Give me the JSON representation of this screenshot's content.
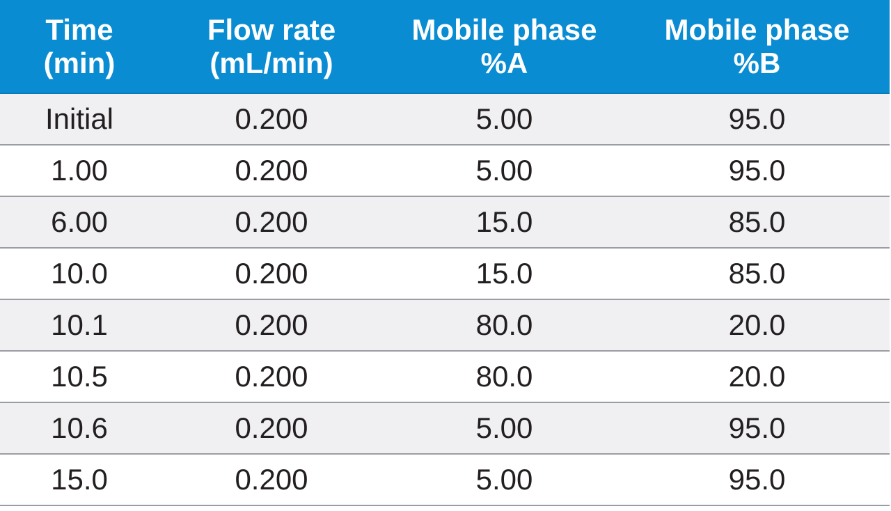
{
  "colors": {
    "header_bg": "#0a8cd2",
    "header_text": "#ffffff",
    "row_shaded": "#f0f0f3",
    "row_plain": "#ffffff",
    "divider": "#9a9da3",
    "body_text": "#231f20"
  },
  "table": {
    "headers": [
      {
        "line1": "Time",
        "line2": "(min)"
      },
      {
        "line1": "Flow rate",
        "line2": "(mL/min)"
      },
      {
        "line1": "Mobile phase",
        "line2": "%A"
      },
      {
        "line1": "Mobile phase",
        "line2": "%B"
      }
    ],
    "rows": [
      [
        "Initial",
        "0.200",
        "5.00",
        "95.0"
      ],
      [
        "1.00",
        "0.200",
        "5.00",
        "95.0"
      ],
      [
        "6.00",
        "0.200",
        "15.0",
        "85.0"
      ],
      [
        "10.0",
        "0.200",
        "15.0",
        "85.0"
      ],
      [
        "10.1",
        "0.200",
        "80.0",
        "20.0"
      ],
      [
        "10.5",
        "0.200",
        "80.0",
        "20.0"
      ],
      [
        "10.6",
        "0.200",
        "5.00",
        "95.0"
      ],
      [
        "15.0",
        "0.200",
        "5.00",
        "95.0"
      ]
    ]
  }
}
